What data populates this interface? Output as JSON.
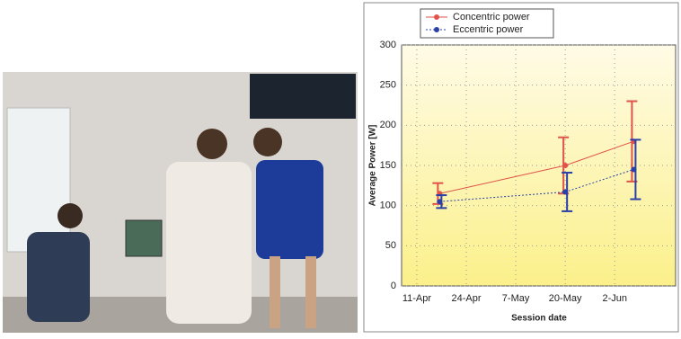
{
  "chart_data": {
    "type": "line",
    "x_label": "Session date",
    "y_label": "Average Power [W]",
    "x": [
      "17-Apr",
      "20-May",
      "7-Jun"
    ],
    "xlim": [
      "7-Apr",
      "18-Jun"
    ],
    "xticks": [
      "11-Apr",
      "24-Apr",
      "7-May",
      "20-May",
      "2-Jun"
    ],
    "ylim": [
      0,
      300
    ],
    "yticks": [
      0,
      50,
      100,
      150,
      200,
      250,
      300
    ],
    "grid": true,
    "legend": "top-left",
    "series": [
      {
        "name": "Concentric power",
        "color": "#e0524a",
        "values": [
          115,
          150,
          180
        ],
        "errors": [
          13,
          35,
          50
        ]
      },
      {
        "name": "Eccentric power",
        "color": "#2a3fa8",
        "values": [
          105,
          117,
          145
        ],
        "errors": [
          8,
          24,
          37
        ]
      }
    ]
  }
}
